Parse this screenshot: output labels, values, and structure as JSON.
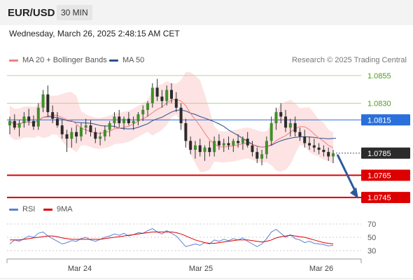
{
  "header": {
    "pair": "EUR/USD",
    "timeframe": "30 MIN"
  },
  "datetime": "Wednesday, March 26, 2025 2:48:15 AM CET",
  "legend": {
    "ma_bb": {
      "label": "MA 20 + Bollinger Bands",
      "color": "#f08080"
    },
    "ma50": {
      "label": "MA 50",
      "color": "#2c4f8c"
    },
    "rsi": {
      "label": "RSI",
      "color": "#5b7fd6"
    },
    "nine_ma": {
      "label": "9MA",
      "color": "#dd0000"
    }
  },
  "copyright": "Research © 2025 Trading Central",
  "levels": [
    {
      "label": "1.0855",
      "value": 1.0855,
      "style": "resistance-text",
      "color": "#4a9e1a"
    },
    {
      "label": "1.0830",
      "value": 1.083,
      "style": "resistance-text",
      "color": "#4a9e1a"
    },
    {
      "label": "1.0815",
      "value": 1.0815,
      "style": "pivot",
      "color": "#2a6fdb"
    },
    {
      "label": "1.0785",
      "value": 1.0785,
      "style": "last",
      "color": "#333333"
    },
    {
      "label": "1.0765",
      "value": 1.0765,
      "style": "support",
      "color": "#dd0000"
    },
    {
      "label": "1.0745",
      "value": 1.0745,
      "style": "support",
      "color": "#dd0000"
    }
  ],
  "rsi_axis": [
    "70",
    "50",
    "30"
  ],
  "x_axis": [
    "Mar 24",
    "Mar 25",
    "Mar 26"
  ],
  "chart_data": {
    "type": "candlestick",
    "price_range": [
      1.074,
      1.086
    ],
    "candles": [
      [
        1.081,
        1.0818,
        1.0802,
        1.0814
      ],
      [
        1.0814,
        1.082,
        1.0806,
        1.0808
      ],
      [
        1.0808,
        1.0815,
        1.08,
        1.0812
      ],
      [
        1.0812,
        1.0822,
        1.0808,
        1.0818
      ],
      [
        1.0818,
        1.0825,
        1.081,
        1.0814
      ],
      [
        1.0814,
        1.0819,
        1.0806,
        1.0809
      ],
      [
        1.0809,
        1.083,
        1.0806,
        1.0826
      ],
      [
        1.0826,
        1.0842,
        1.0822,
        1.0838
      ],
      [
        1.0838,
        1.0846,
        1.0818,
        1.0822
      ],
      [
        1.0822,
        1.0828,
        1.0812,
        1.0816
      ],
      [
        1.0816,
        1.0822,
        1.0808,
        1.081
      ],
      [
        1.081,
        1.0815,
        1.0798,
        1.0802
      ],
      [
        1.0802,
        1.0806,
        1.0786,
        1.0798
      ],
      [
        1.0798,
        1.0808,
        1.079,
        1.0804
      ],
      [
        1.0804,
        1.081,
        1.0794,
        1.08
      ],
      [
        1.08,
        1.0812,
        1.0796,
        1.0808
      ],
      [
        1.0808,
        1.0816,
        1.0802,
        1.081
      ],
      [
        1.081,
        1.0815,
        1.08,
        1.0804
      ],
      [
        1.0804,
        1.0808,
        1.0794,
        1.0798
      ],
      [
        1.0798,
        1.0804,
        1.0792,
        1.08
      ],
      [
        1.08,
        1.081,
        1.0796,
        1.0806
      ],
      [
        1.0806,
        1.0814,
        1.08,
        1.0812
      ],
      [
        1.0812,
        1.0822,
        1.0808,
        1.0818
      ],
      [
        1.0818,
        1.0824,
        1.0808,
        1.0812
      ],
      [
        1.0812,
        1.0818,
        1.0806,
        1.0816
      ],
      [
        1.0816,
        1.0822,
        1.081,
        1.0812
      ],
      [
        1.0812,
        1.0818,
        1.0806,
        1.0814
      ],
      [
        1.0814,
        1.0822,
        1.081,
        1.082
      ],
      [
        1.082,
        1.0828,
        1.0814,
        1.0824
      ],
      [
        1.0824,
        1.0832,
        1.0818,
        1.083
      ],
      [
        1.083,
        1.0848,
        1.0826,
        1.0844
      ],
      [
        1.0844,
        1.0852,
        1.0832,
        1.0836
      ],
      [
        1.0836,
        1.0842,
        1.0826,
        1.0832
      ],
      [
        1.0832,
        1.0846,
        1.0828,
        1.0842
      ],
      [
        1.0842,
        1.0848,
        1.083,
        1.0834
      ],
      [
        1.0834,
        1.084,
        1.0822,
        1.0826
      ],
      [
        1.0826,
        1.083,
        1.0806,
        1.0812
      ],
      [
        1.0812,
        1.0816,
        1.079,
        1.0796
      ],
      [
        1.0796,
        1.08,
        1.0784,
        1.0788
      ],
      [
        1.0788,
        1.0796,
        1.078,
        1.0792
      ],
      [
        1.0792,
        1.0798,
        1.0782,
        1.0786
      ],
      [
        1.0786,
        1.0792,
        1.0778,
        1.079
      ],
      [
        1.079,
        1.0796,
        1.0782,
        1.0786
      ],
      [
        1.0786,
        1.08,
        1.0782,
        1.0796
      ],
      [
        1.0796,
        1.0802,
        1.0788,
        1.0792
      ],
      [
        1.0792,
        1.0798,
        1.0786,
        1.0794
      ],
      [
        1.0794,
        1.08,
        1.0788,
        1.0792
      ],
      [
        1.0792,
        1.0798,
        1.0786,
        1.0796
      ],
      [
        1.0796,
        1.0802,
        1.079,
        1.0794
      ],
      [
        1.0794,
        1.08,
        1.0788,
        1.0798
      ],
      [
        1.0798,
        1.0804,
        1.079,
        1.0792
      ],
      [
        1.0792,
        1.0796,
        1.0782,
        1.0786
      ],
      [
        1.0786,
        1.079,
        1.0776,
        1.078
      ],
      [
        1.078,
        1.0788,
        1.0774,
        1.0784
      ],
      [
        1.0784,
        1.08,
        1.078,
        1.0796
      ],
      [
        1.0796,
        1.0818,
        1.0792,
        1.0812
      ],
      [
        1.0812,
        1.0826,
        1.0806,
        1.0822
      ],
      [
        1.0822,
        1.083,
        1.0812,
        1.0818
      ],
      [
        1.0818,
        1.0824,
        1.0804,
        1.0808
      ],
      [
        1.0808,
        1.0816,
        1.08,
        1.0812
      ],
      [
        1.0812,
        1.0818,
        1.08,
        1.0804
      ],
      [
        1.0804,
        1.0808,
        1.0796,
        1.08
      ],
      [
        1.08,
        1.0806,
        1.079,
        1.0794
      ],
      [
        1.0794,
        1.08,
        1.0788,
        1.0792
      ],
      [
        1.0792,
        1.0798,
        1.0786,
        1.079
      ],
      [
        1.079,
        1.0794,
        1.0784,
        1.0788
      ],
      [
        1.0788,
        1.0792,
        1.0782,
        1.0786
      ],
      [
        1.0786,
        1.079,
        1.0778,
        1.0782
      ],
      [
        1.0782,
        1.0788,
        1.0776,
        1.0785
      ]
    ],
    "rsi": [
      40,
      46,
      44,
      48,
      52,
      50,
      56,
      58,
      52,
      48,
      44,
      40,
      42,
      45,
      44,
      48,
      50,
      46,
      44,
      47,
      50,
      52,
      55,
      53,
      56,
      52,
      54,
      57,
      56,
      60,
      63,
      58,
      55,
      60,
      56,
      52,
      44,
      36,
      38,
      40,
      38,
      42,
      40,
      46,
      44,
      47,
      45,
      48,
      46,
      49,
      44,
      40,
      36,
      40,
      48,
      58,
      62,
      56,
      50,
      54,
      48,
      46,
      42,
      44,
      41,
      40,
      39,
      37,
      38
    ],
    "rsi_ma": [
      46,
      46,
      46,
      47,
      48,
      49,
      50,
      51,
      52,
      52,
      51,
      49,
      48,
      47,
      47,
      47,
      47,
      47,
      47,
      47,
      48,
      49,
      50,
      51,
      52,
      53,
      54,
      55,
      56,
      57,
      58,
      58,
      58,
      58,
      58,
      57,
      55,
      52,
      49,
      46,
      44,
      42,
      41,
      41,
      42,
      43,
      44,
      45,
      46,
      46,
      46,
      45,
      44,
      43,
      44,
      46,
      49,
      51,
      52,
      53,
      52,
      51,
      50,
      48,
      46,
      44,
      42,
      41,
      40
    ]
  }
}
